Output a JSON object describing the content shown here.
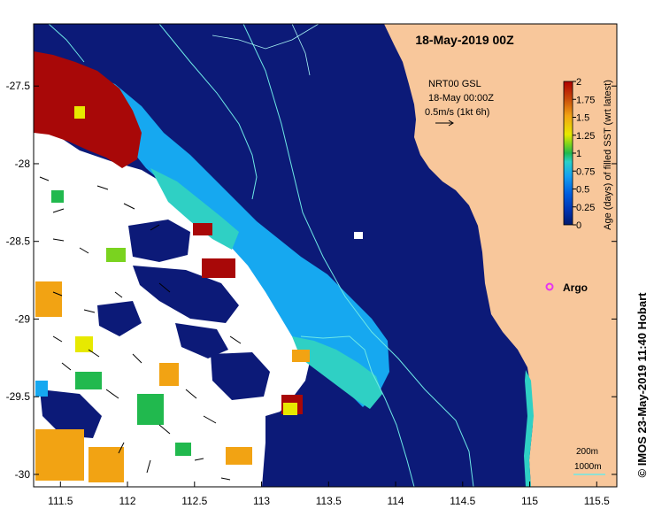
{
  "title": "18-May-2019 00Z",
  "legend_info": {
    "line1": "NRT00 GSL",
    "line2": "18-May 00:00Z",
    "line3": "0.5m/s (1kt 6h)"
  },
  "colorbar": {
    "label": "Age (days) of filled SST (wrt latest)",
    "ticks": [
      "2",
      "1.75",
      "1.5",
      "1.25",
      "1",
      "0.75",
      "0.5",
      "0.25",
      "0"
    ],
    "colors": [
      "#001a6e",
      "#0033b0",
      "#005fe0",
      "#16a0f0",
      "#29d0c8",
      "#21b94e",
      "#7ad31f",
      "#e7e900",
      "#f2a313",
      "#b00000"
    ]
  },
  "marker": {
    "label": "Argo",
    "color": "#e635f0"
  },
  "contours": {
    "line1": "200m",
    "line2": "1000m",
    "color": "#6de8e6"
  },
  "axes": {
    "x_ticks": [
      "111.5",
      "112",
      "112.5",
      "113",
      "113.5",
      "114",
      "114.5",
      "115",
      "115.5"
    ],
    "y_ticks": [
      "-27.5",
      "-28",
      "-28.5",
      "-29",
      "-29.5",
      "-30"
    ],
    "x_range": [
      111.3,
      115.65
    ],
    "y_range": [
      -30.08,
      -27.1
    ]
  },
  "credit": "© IMOS 23-May-2019 11:40 Hobart",
  "colors": {
    "land": "#f8c79b",
    "ocean_deep": "#0c1a78",
    "no_data": "#ffffff"
  }
}
